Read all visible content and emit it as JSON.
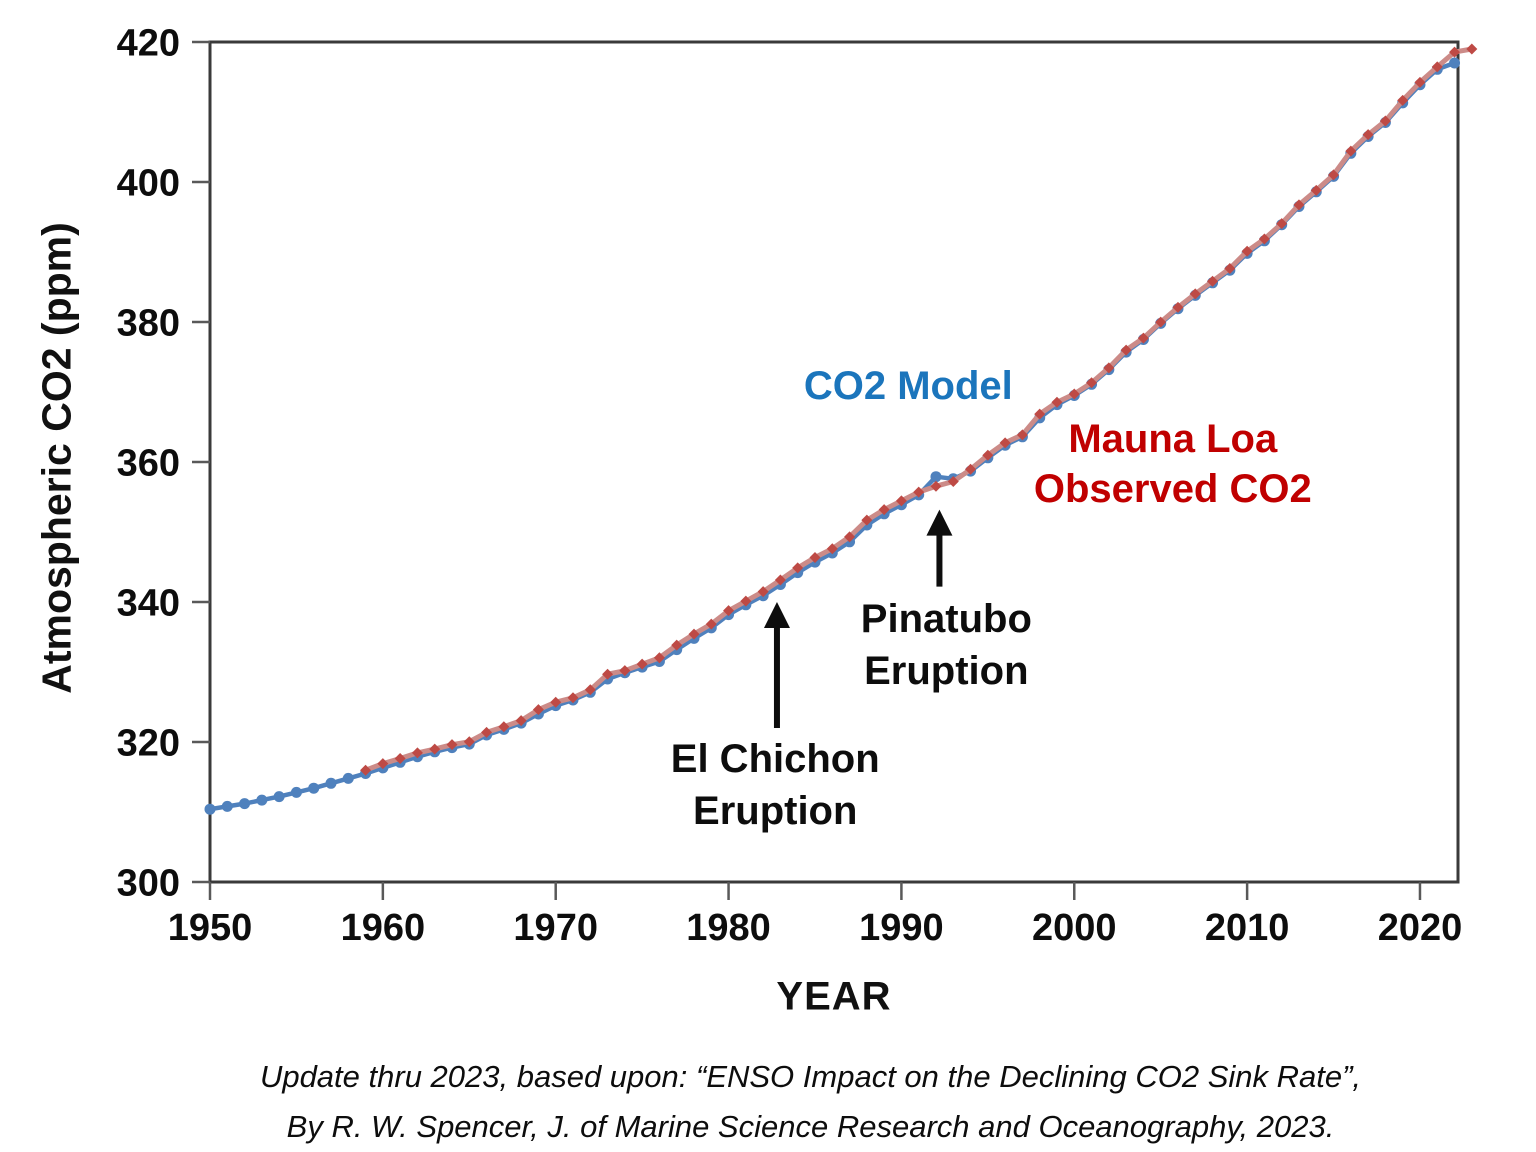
{
  "chart_data": {
    "type": "line",
    "title": "",
    "xlabel": "YEAR",
    "ylabel": "Atmospheric CO2 (ppm)",
    "xlim": [
      1950,
      2022.2
    ],
    "ylim": [
      300,
      420
    ],
    "x_ticks": [
      1950,
      1960,
      1970,
      1980,
      1990,
      2000,
      2010,
      2020
    ],
    "y_ticks": [
      300,
      320,
      340,
      360,
      380,
      400,
      420
    ],
    "grid": false,
    "legend_position": "inline-text-labels",
    "series": [
      {
        "name": "CO2 Model",
        "marker": "circle",
        "color": "#4F81BD",
        "line_color": "#4F81BD",
        "start_year": 1950,
        "end_year": 2022,
        "values": [
          310.4,
          310.8,
          311.2,
          311.7,
          312.2,
          312.8,
          313.4,
          314.1,
          314.8,
          315.5,
          316.3,
          317.1,
          317.9,
          318.6,
          319.2,
          319.7,
          321.0,
          321.8,
          322.7,
          324.0,
          325.2,
          326.0,
          327.1,
          329.0,
          329.9,
          330.7,
          331.5,
          333.2,
          334.8,
          336.3,
          338.2,
          339.6,
          340.9,
          342.5,
          344.2,
          345.7,
          347.0,
          348.6,
          351.0,
          352.6,
          353.9,
          355.3,
          357.9,
          357.6,
          358.7,
          360.6,
          362.4,
          363.6,
          366.3,
          368.2,
          369.5,
          371.1,
          373.2,
          375.7,
          377.5,
          379.8,
          381.9,
          383.8,
          385.6,
          387.4,
          389.8,
          391.6,
          393.9,
          396.5,
          398.6,
          400.8,
          404.1,
          406.5,
          408.5,
          411.3,
          413.9,
          416.1,
          417.0
        ]
      },
      {
        "name": "Mauna Loa Observed CO2",
        "marker": "diamond",
        "color": "#BE4A45",
        "line_color": "#CC8B88",
        "start_year": 1959,
        "end_year": 2023,
        "values": [
          315.97,
          316.91,
          317.64,
          318.45,
          318.99,
          319.62,
          320.04,
          321.37,
          322.18,
          323.05,
          324.62,
          325.68,
          326.32,
          327.46,
          329.68,
          330.19,
          331.12,
          332.03,
          333.84,
          335.41,
          336.84,
          338.76,
          340.12,
          341.48,
          343.15,
          344.87,
          346.35,
          347.61,
          349.31,
          351.69,
          353.2,
          354.45,
          355.7,
          356.54,
          357.21,
          358.96,
          360.97,
          362.74,
          363.88,
          366.84,
          368.54,
          369.71,
          371.32,
          373.45,
          375.98,
          377.7,
          379.98,
          382.09,
          384.02,
          385.83,
          387.64,
          390.1,
          391.85,
          394.06,
          396.74,
          398.81,
          401.01,
          404.41,
          406.76,
          408.72,
          411.66,
          414.24,
          416.45,
          418.56,
          419.0
        ]
      }
    ],
    "series_labels": {
      "model": {
        "text": "CO2 Model",
        "color": "#1B75BC",
        "year": 1990.4,
        "center_ppm": 370.9
      },
      "observed": {
        "line1": "Mauna Loa",
        "line2": "Observed CO2",
        "color": "#C00000",
        "year": 2005.7,
        "top_ppm": 366.9
      }
    },
    "annotations": [
      {
        "line1": "El Chichon",
        "line2": "Eruption",
        "arrow": {
          "year": 1982.8,
          "tip_ppm": 340.0,
          "tail_ppm": 322.0
        },
        "label": {
          "year": 1982.7,
          "top_ppm": 321.3
        }
      },
      {
        "line1": "Pinatubo",
        "line2": "Eruption",
        "arrow": {
          "year": 1992.2,
          "tip_ppm": 353.2,
          "tail_ppm": 342.2
        },
        "label": {
          "year": 1992.6,
          "top_ppm": 341.3
        }
      }
    ],
    "axis_color": "#3a3a3a",
    "tick_color": "#595959",
    "tick_label_color": "#0d0d0d"
  },
  "caption": {
    "line1": "Update thru 2023, based upon: “ENSO Impact on the Declining CO2 Sink Rate”,",
    "line2": "By R. W. Spencer, J. of Marine Science Research and Oceanography, 2023."
  }
}
